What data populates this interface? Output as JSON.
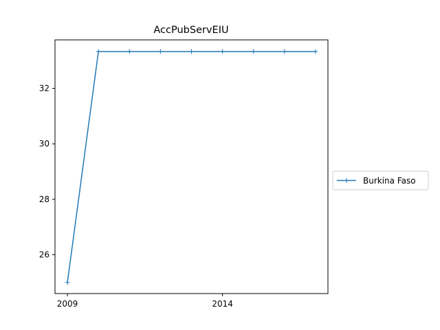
{
  "chart_data": {
    "type": "line",
    "title": "AccPubServEIU",
    "xlabel": "",
    "ylabel": "",
    "x": [
      2009,
      2010,
      2011,
      2012,
      2013,
      2014,
      2015,
      2016,
      2017
    ],
    "series": [
      {
        "name": "Burkina Faso",
        "values": [
          25.0,
          33.33,
          33.33,
          33.33,
          33.33,
          33.33,
          33.33,
          33.33,
          33.33
        ],
        "color": "#1f77b4",
        "marker": "+"
      }
    ],
    "xlim": [
      2008.6,
      2017.4
    ],
    "ylim": [
      24.6,
      33.75
    ],
    "xticks": [
      2009,
      2014
    ],
    "yticks": [
      26,
      28,
      30,
      32
    ],
    "grid": false,
    "legend_position": "right-outside"
  }
}
